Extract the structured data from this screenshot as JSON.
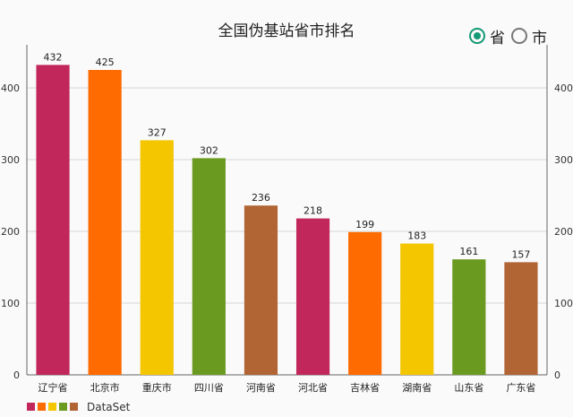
{
  "header": {
    "title": "全国伪基站省市排名"
  },
  "toggle": {
    "options": [
      {
        "label": "省",
        "selected": true
      },
      {
        "label": "市",
        "selected": false
      }
    ],
    "accent": "#139a74"
  },
  "legend": {
    "label": "DataSet"
  },
  "chart_data": {
    "type": "bar",
    "title": "全国伪基站省市排名",
    "categories": [
      "辽宁省",
      "北京市",
      "重庆市",
      "四川省",
      "河南省",
      "河北省",
      "吉林省",
      "湖南省",
      "山东省",
      "广东省"
    ],
    "series": [
      {
        "name": "DataSet",
        "values": [
          432,
          425,
          327,
          302,
          236,
          218,
          199,
          183,
          161,
          157
        ]
      }
    ],
    "colors": [
      "#c1275a",
      "#fe6b00",
      "#f4c600",
      "#6a9a1f",
      "#b16535",
      "#c1275a",
      "#fe6b00",
      "#f4c600",
      "#6a9a1f",
      "#b16535"
    ],
    "legend_colors": [
      "#c1275a",
      "#fe6b00",
      "#f4c600",
      "#6a9a1f",
      "#b16535"
    ],
    "ylim": [
      0,
      450
    ],
    "yticks": [
      0,
      100,
      200,
      300,
      400
    ],
    "y_axis_both_sides": true,
    "grid": true,
    "legend_position": "bottom-left",
    "xlabel": "",
    "ylabel": ""
  }
}
